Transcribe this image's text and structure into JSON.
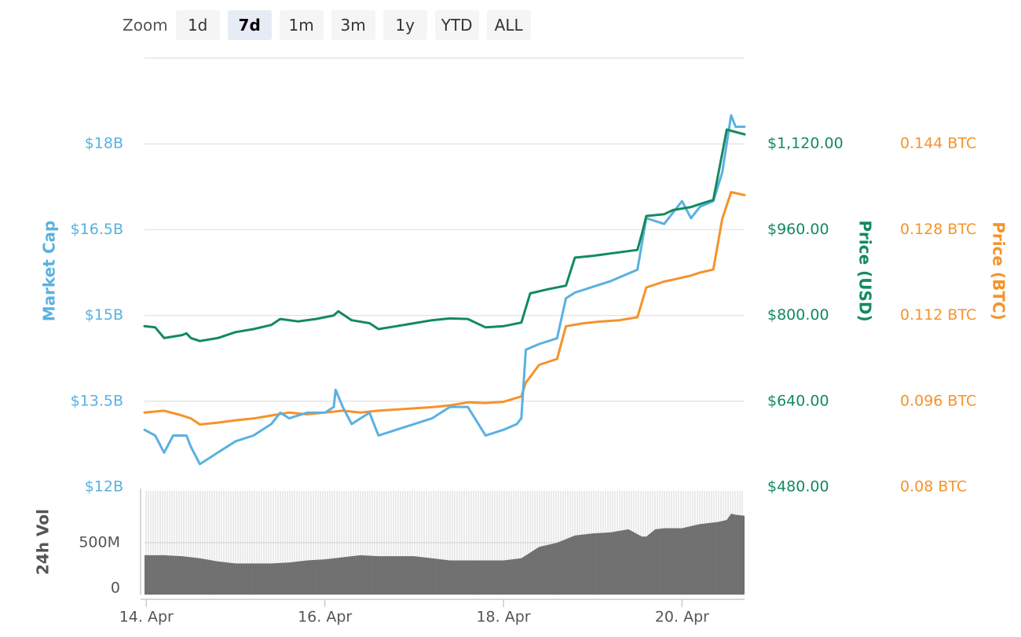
{
  "zoom": {
    "label": "Zoom",
    "buttons": [
      "1d",
      "7d",
      "1m",
      "3m",
      "1y",
      "YTD",
      "ALL"
    ],
    "active": "7d"
  },
  "colors": {
    "market_cap": "#5ab1e0",
    "price_usd": "#138a5e",
    "price_btc": "#f5932a",
    "volume": "#6e6e6e",
    "grid": "#e6e6e6"
  },
  "chart_data": {
    "type": "line",
    "x_ticks": [
      "14. Apr",
      "16. Apr",
      "18. Apr",
      "20. Apr"
    ],
    "x_range_days": [
      13.98,
      20.7
    ],
    "x_tick_days": [
      14,
      16,
      18,
      20
    ],
    "axes": {
      "market_cap": {
        "title": "Market Cap",
        "range": [
          12,
          19.5
        ],
        "ticks": [
          12,
          13.5,
          15,
          16.5,
          18
        ],
        "tick_labels": [
          "$12B",
          "$13.5B",
          "$15B",
          "$16.5B",
          "$18B"
        ]
      },
      "price_usd": {
        "title": "Price (USD)",
        "range": [
          480,
          1200
        ],
        "tick_labels": [
          "$480.00",
          "$640.00",
          "$800.00",
          "$960.00",
          "$1,120.00"
        ]
      },
      "price_btc": {
        "title": "Price (BTC)",
        "range": [
          0.08,
          0.152
        ],
        "tick_labels": [
          "0.08 BTC",
          "0.096 BTC",
          "0.112 BTC",
          "0.128 BTC",
          "0.144 BTC"
        ]
      },
      "volume": {
        "title": "24h Vol",
        "range": [
          0,
          1000
        ],
        "tick_labels": [
          "0",
          "500M"
        ],
        "ticks": [
          0,
          500
        ]
      }
    },
    "series": [
      {
        "key": "market_cap",
        "unit": "B USD",
        "points": [
          [
            13.98,
            13.0
          ],
          [
            14.1,
            12.9
          ],
          [
            14.2,
            12.6
          ],
          [
            14.3,
            12.9
          ],
          [
            14.45,
            12.9
          ],
          [
            14.5,
            12.7
          ],
          [
            14.6,
            12.4
          ],
          [
            14.8,
            12.6
          ],
          [
            15.0,
            12.8
          ],
          [
            15.2,
            12.9
          ],
          [
            15.4,
            13.1
          ],
          [
            15.5,
            13.3
          ],
          [
            15.6,
            13.2
          ],
          [
            15.8,
            13.3
          ],
          [
            16.0,
            13.3
          ],
          [
            16.1,
            13.4
          ],
          [
            16.12,
            13.7
          ],
          [
            16.2,
            13.4
          ],
          [
            16.3,
            13.1
          ],
          [
            16.4,
            13.2
          ],
          [
            16.5,
            13.3
          ],
          [
            16.6,
            12.9
          ],
          [
            16.8,
            13.0
          ],
          [
            17.0,
            13.1
          ],
          [
            17.2,
            13.2
          ],
          [
            17.4,
            13.4
          ],
          [
            17.6,
            13.4
          ],
          [
            17.8,
            12.9
          ],
          [
            18.0,
            13.0
          ],
          [
            18.15,
            13.1
          ],
          [
            18.2,
            13.2
          ],
          [
            18.25,
            14.4
          ],
          [
            18.4,
            14.5
          ],
          [
            18.6,
            14.6
          ],
          [
            18.7,
            15.3
          ],
          [
            18.8,
            15.4
          ],
          [
            19.0,
            15.5
          ],
          [
            19.2,
            15.6
          ],
          [
            19.5,
            15.8
          ],
          [
            19.6,
            16.7
          ],
          [
            19.8,
            16.6
          ],
          [
            19.9,
            16.8
          ],
          [
            20.0,
            17.0
          ],
          [
            20.1,
            16.7
          ],
          [
            20.2,
            16.9
          ],
          [
            20.35,
            17.0
          ],
          [
            20.45,
            17.5
          ],
          [
            20.55,
            18.5
          ],
          [
            20.6,
            18.3
          ],
          [
            20.7,
            18.3
          ]
        ]
      },
      {
        "key": "price_usd",
        "unit": "USD",
        "points": [
          [
            13.98,
            750
          ],
          [
            14.1,
            748
          ],
          [
            14.2,
            730
          ],
          [
            14.4,
            735
          ],
          [
            14.45,
            738
          ],
          [
            14.5,
            730
          ],
          [
            14.6,
            725
          ],
          [
            14.8,
            730
          ],
          [
            15.0,
            740
          ],
          [
            15.2,
            745
          ],
          [
            15.4,
            752
          ],
          [
            15.5,
            762
          ],
          [
            15.7,
            758
          ],
          [
            15.9,
            762
          ],
          [
            16.0,
            765
          ],
          [
            16.1,
            768
          ],
          [
            16.15,
            775
          ],
          [
            16.3,
            760
          ],
          [
            16.5,
            755
          ],
          [
            16.6,
            745
          ],
          [
            16.8,
            750
          ],
          [
            17.0,
            755
          ],
          [
            17.2,
            760
          ],
          [
            17.4,
            763
          ],
          [
            17.6,
            762
          ],
          [
            17.8,
            748
          ],
          [
            18.0,
            750
          ],
          [
            18.2,
            756
          ],
          [
            18.3,
            805
          ],
          [
            18.5,
            812
          ],
          [
            18.7,
            818
          ],
          [
            18.8,
            865
          ],
          [
            19.0,
            868
          ],
          [
            19.2,
            872
          ],
          [
            19.5,
            878
          ],
          [
            19.55,
            905
          ],
          [
            19.6,
            935
          ],
          [
            19.8,
            938
          ],
          [
            19.9,
            945
          ],
          [
            20.1,
            950
          ],
          [
            20.2,
            955
          ],
          [
            20.35,
            962
          ],
          [
            20.45,
            1040
          ],
          [
            20.5,
            1080
          ],
          [
            20.7,
            1072
          ]
        ]
      },
      {
        "key": "price_btc",
        "unit": "BTC",
        "points": [
          [
            13.98,
            0.0925
          ],
          [
            14.2,
            0.0928
          ],
          [
            14.4,
            0.092
          ],
          [
            14.5,
            0.0915
          ],
          [
            14.6,
            0.0905
          ],
          [
            14.8,
            0.0908
          ],
          [
            15.0,
            0.0912
          ],
          [
            15.2,
            0.0915
          ],
          [
            15.4,
            0.092
          ],
          [
            15.6,
            0.0925
          ],
          [
            15.8,
            0.0922
          ],
          [
            16.0,
            0.0925
          ],
          [
            16.2,
            0.0928
          ],
          [
            16.4,
            0.0925
          ],
          [
            16.6,
            0.0928
          ],
          [
            16.8,
            0.093
          ],
          [
            17.0,
            0.0932
          ],
          [
            17.2,
            0.0934
          ],
          [
            17.4,
            0.0937
          ],
          [
            17.6,
            0.0942
          ],
          [
            17.8,
            0.0941
          ],
          [
            18.0,
            0.0943
          ],
          [
            18.2,
            0.0952
          ],
          [
            18.25,
            0.0975
          ],
          [
            18.4,
            0.1005
          ],
          [
            18.6,
            0.1015
          ],
          [
            18.7,
            0.107
          ],
          [
            18.9,
            0.1075
          ],
          [
            19.1,
            0.1078
          ],
          [
            19.3,
            0.108
          ],
          [
            19.5,
            0.1085
          ],
          [
            19.6,
            0.1135
          ],
          [
            19.8,
            0.1145
          ],
          [
            19.9,
            0.1148
          ],
          [
            20.1,
            0.1155
          ],
          [
            20.2,
            0.116
          ],
          [
            20.35,
            0.1165
          ],
          [
            20.45,
            0.125
          ],
          [
            20.55,
            0.1295
          ],
          [
            20.7,
            0.129
          ]
        ]
      },
      {
        "key": "volume",
        "unit": "M USD",
        "points": [
          [
            13.98,
            380
          ],
          [
            14.2,
            380
          ],
          [
            14.4,
            370
          ],
          [
            14.6,
            350
          ],
          [
            14.8,
            320
          ],
          [
            15.0,
            300
          ],
          [
            15.2,
            300
          ],
          [
            15.4,
            300
          ],
          [
            15.6,
            310
          ],
          [
            15.8,
            330
          ],
          [
            16.0,
            340
          ],
          [
            16.2,
            360
          ],
          [
            16.4,
            380
          ],
          [
            16.6,
            370
          ],
          [
            16.8,
            370
          ],
          [
            17.0,
            370
          ],
          [
            17.2,
            350
          ],
          [
            17.4,
            330
          ],
          [
            17.6,
            330
          ],
          [
            17.8,
            330
          ],
          [
            18.0,
            330
          ],
          [
            18.2,
            350
          ],
          [
            18.4,
            460
          ],
          [
            18.6,
            500
          ],
          [
            18.8,
            570
          ],
          [
            19.0,
            590
          ],
          [
            19.2,
            600
          ],
          [
            19.4,
            630
          ],
          [
            19.55,
            560
          ],
          [
            19.6,
            560
          ],
          [
            19.7,
            630
          ],
          [
            19.8,
            640
          ],
          [
            20.0,
            640
          ],
          [
            20.2,
            680
          ],
          [
            20.4,
            700
          ],
          [
            20.5,
            720
          ],
          [
            20.55,
            780
          ],
          [
            20.6,
            770
          ],
          [
            20.7,
            760
          ]
        ]
      }
    ]
  }
}
